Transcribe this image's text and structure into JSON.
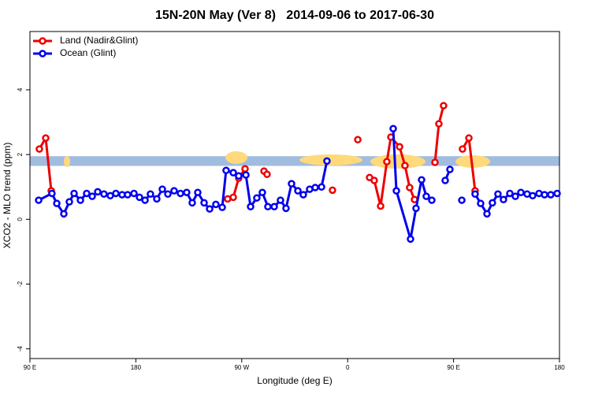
{
  "chart_data": {
    "type": "line",
    "title": "15N-20N May (Ver 8)   2014-09-06 to 2017-06-30",
    "xlabel": "Longitude (deg E)",
    "ylabel": "XCO2 - MLO trend (ppm)",
    "xlim": [
      90,
      540
    ],
    "ylim": [
      -4.3,
      5.8
    ],
    "xticks": [
      {
        "value": 90,
        "label": "90 E"
      },
      {
        "value": 180,
        "label": "180"
      },
      {
        "value": 270,
        "label": "90 W"
      },
      {
        "value": 360,
        "label": "0"
      },
      {
        "value": 450,
        "label": "90 E"
      },
      {
        "value": 540,
        "label": "180"
      }
    ],
    "yticks": [
      -4,
      -2,
      0,
      2,
      4
    ],
    "band": [
      1.65,
      1.95
    ],
    "band_color": "#a2bcdf",
    "legend": "top-left",
    "series": [
      {
        "name": "Land (Nadir&Glint)",
        "color": "#ee0000",
        "x": [
          98,
          103.4,
          108.1,
          null,
          258,
          262.8,
          267.4,
          272.8,
          null,
          288.9,
          291.5,
          null,
          347.1,
          null,
          368.6,
          null,
          378.6,
          382.6,
          388,
          393.3,
          396.7,
          404.1,
          408.7,
          412.7,
          416.8,
          null,
          434.2,
          437.5,
          441.5,
          null,
          457.6,
          463,
          468.3
        ],
        "values": [
          2.17,
          2.51,
          0.88,
          null,
          0.63,
          0.68,
          1.27,
          1.56,
          null,
          1.49,
          1.39,
          null,
          0.9,
          null,
          2.46,
          null,
          1.29,
          1.2,
          0.41,
          1.78,
          2.54,
          2.24,
          1.66,
          0.98,
          0.61,
          null,
          1.76,
          2.95,
          3.51,
          null,
          2.17,
          2.51,
          0.88
        ]
      },
      {
        "name": "Ocean (Glint)",
        "color": "#0000ee",
        "x": [
          97.4,
          108.7,
          112.8,
          118.8,
          123.5,
          127.5,
          132.9,
          138.2,
          142.9,
          147.6,
          152.9,
          158.3,
          163,
          168.3,
          173,
          178.4,
          183.1,
          187.8,
          192.4,
          197.8,
          202.5,
          207.2,
          212.5,
          217.9,
          223.2,
          227.9,
          232.6,
          238,
          242.7,
          248,
          253.4,
          256.7,
          262.8,
          267.4,
          273.5,
          277.5,
          282.8,
          287.5,
          292.2,
          297.6,
          302.9,
          307.6,
          312.3,
          317.7,
          322.3,
          327.7,
          332.4,
          337.8,
          342.4,
          null,
          398.7,
          401.4,
          413.4,
          418.1,
          422.8,
          426.8,
          431.5,
          null,
          442.9,
          446.9,
          null,
          457,
          null,
          468.3,
          473,
          478.4,
          483,
          487.7,
          492.4,
          497.8,
          502.5,
          507.2,
          512.5,
          517.2,
          522.6,
          527.3,
          532.6,
          538
        ],
        "values": [
          0.59,
          0.8,
          0.49,
          0.17,
          0.54,
          0.8,
          0.59,
          0.8,
          0.71,
          0.85,
          0.78,
          0.73,
          0.8,
          0.76,
          0.76,
          0.8,
          0.68,
          0.59,
          0.78,
          0.63,
          0.93,
          0.78,
          0.88,
          0.8,
          0.83,
          0.51,
          0.83,
          0.51,
          0.32,
          0.46,
          0.37,
          1.51,
          1.44,
          1.34,
          1.37,
          0.39,
          0.66,
          0.83,
          0.39,
          0.39,
          0.59,
          0.34,
          1.1,
          0.88,
          0.76,
          0.93,
          0.98,
          1.0,
          1.8,
          null,
          2.8,
          0.88,
          -0.61,
          0.34,
          1.22,
          0.71,
          0.59,
          null,
          1.2,
          1.54,
          null,
          0.59,
          null,
          0.78,
          0.49,
          0.17,
          0.51,
          0.78,
          0.61,
          0.8,
          0.71,
          0.83,
          0.78,
          0.73,
          0.8,
          0.76,
          0.76,
          0.8
        ]
      }
    ]
  }
}
